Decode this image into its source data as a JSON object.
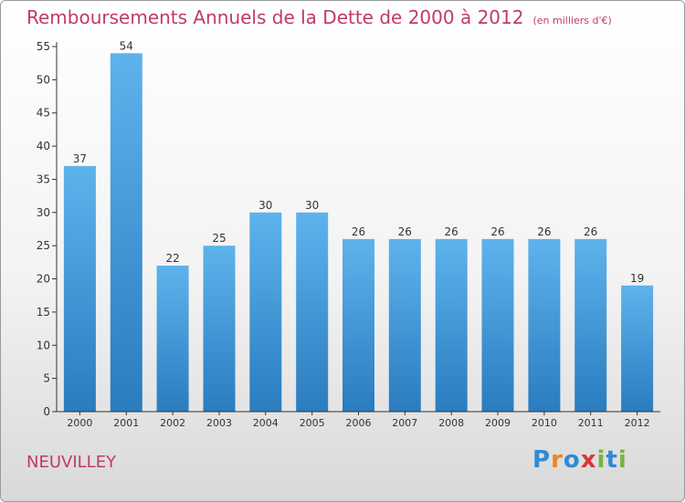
{
  "title": "Remboursements Annuels de la Dette de 2000 à 2012",
  "unit": "(en milliers d'€)",
  "commune": "NEUVILLEY",
  "logo": {
    "text": "Proxiti",
    "letters": [
      "P",
      "r",
      "o",
      "x",
      "i",
      "t",
      "i"
    ],
    "colors": [
      "#2e8bd6",
      "#e8852a",
      "#2e8bd6",
      "#d9383a",
      "#7cb342",
      "#2e8bd6",
      "#7cb342"
    ]
  },
  "colors": {
    "bar_light": "#5eb3ec",
    "bar_dark": "#2a7cbf",
    "axis": "#333333",
    "title": "#c03a6b"
  },
  "chart_data": {
    "type": "bar",
    "categories": [
      "2000",
      "2001",
      "2002",
      "2003",
      "2004",
      "2005",
      "2006",
      "2007",
      "2008",
      "2009",
      "2010",
      "2011",
      "2012"
    ],
    "values": [
      37,
      54,
      22,
      25,
      30,
      30,
      26,
      26,
      26,
      26,
      26,
      26,
      19
    ],
    "ylim": [
      0,
      55
    ],
    "yticks": [
      0,
      5,
      10,
      15,
      20,
      25,
      30,
      35,
      40,
      45,
      50,
      55
    ],
    "grid": false,
    "legend": "none"
  }
}
